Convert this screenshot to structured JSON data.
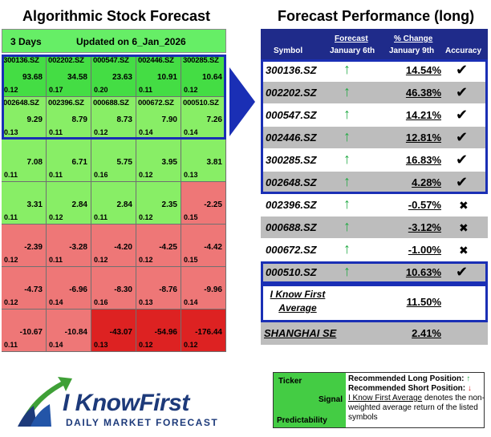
{
  "left_title": "Algorithmic Stock Forecast",
  "right_title": "Forecast Performance (long)",
  "header": {
    "days": "3 Days",
    "updated": "Updated on 6_Jan_2026"
  },
  "colors": {
    "bright_green": "#44dd44",
    "light_green": "#88ee66",
    "light_red": "#ee7777",
    "bright_red": "#dd2222",
    "table_dark": "#1f2b8a",
    "selection_blue": "#1a2fb5",
    "row_grey": "#bdbdbd"
  },
  "grid": [
    {
      "symbol": "300136.SZ",
      "signal": "93.68",
      "pred": "0.12",
      "tone": "bright_green"
    },
    {
      "symbol": "002202.SZ",
      "signal": "34.58",
      "pred": "0.17",
      "tone": "bright_green"
    },
    {
      "symbol": "000547.SZ",
      "signal": "23.63",
      "pred": "0.20",
      "tone": "bright_green"
    },
    {
      "symbol": "002446.SZ",
      "signal": "10.91",
      "pred": "0.11",
      "tone": "bright_green"
    },
    {
      "symbol": "300285.SZ",
      "signal": "10.64",
      "pred": "0.12",
      "tone": "bright_green"
    },
    {
      "symbol": "002648.SZ",
      "signal": "9.29",
      "pred": "0.13",
      "tone": "light_green"
    },
    {
      "symbol": "002396.SZ",
      "signal": "8.79",
      "pred": "0.11",
      "tone": "light_green"
    },
    {
      "symbol": "000688.SZ",
      "signal": "8.73",
      "pred": "0.12",
      "tone": "light_green"
    },
    {
      "symbol": "000672.SZ",
      "signal": "7.90",
      "pred": "0.14",
      "tone": "light_green"
    },
    {
      "symbol": "000510.SZ",
      "signal": "7.26",
      "pred": "0.14",
      "tone": "light_green"
    },
    {
      "symbol": "",
      "signal": "7.08",
      "pred": "0.11",
      "tone": "light_green"
    },
    {
      "symbol": "",
      "signal": "6.71",
      "pred": "0.11",
      "tone": "light_green"
    },
    {
      "symbol": "",
      "signal": "5.75",
      "pred": "0.16",
      "tone": "light_green"
    },
    {
      "symbol": "",
      "signal": "3.95",
      "pred": "0.12",
      "tone": "light_green"
    },
    {
      "symbol": "",
      "signal": "3.81",
      "pred": "0.13",
      "tone": "light_green"
    },
    {
      "symbol": "",
      "signal": "3.31",
      "pred": "0.11",
      "tone": "light_green"
    },
    {
      "symbol": "",
      "signal": "2.84",
      "pred": "0.12",
      "tone": "light_green"
    },
    {
      "symbol": "",
      "signal": "2.84",
      "pred": "0.11",
      "tone": "light_green"
    },
    {
      "symbol": "",
      "signal": "2.35",
      "pred": "0.12",
      "tone": "light_green"
    },
    {
      "symbol": "",
      "signal": "-2.25",
      "pred": "0.15",
      "tone": "light_red"
    },
    {
      "symbol": "",
      "signal": "-2.39",
      "pred": "0.12",
      "tone": "light_red"
    },
    {
      "symbol": "",
      "signal": "-3.28",
      "pred": "0.11",
      "tone": "light_red"
    },
    {
      "symbol": "",
      "signal": "-4.20",
      "pred": "0.12",
      "tone": "light_red"
    },
    {
      "symbol": "",
      "signal": "-4.25",
      "pred": "0.12",
      "tone": "light_red"
    },
    {
      "symbol": "",
      "signal": "-4.42",
      "pred": "0.15",
      "tone": "light_red"
    },
    {
      "symbol": "",
      "signal": "-4.73",
      "pred": "0.12",
      "tone": "light_red"
    },
    {
      "symbol": "",
      "signal": "-6.96",
      "pred": "0.14",
      "tone": "light_red"
    },
    {
      "symbol": "",
      "signal": "-8.30",
      "pred": "0.16",
      "tone": "light_red"
    },
    {
      "symbol": "",
      "signal": "-8.76",
      "pred": "0.13",
      "tone": "light_red"
    },
    {
      "symbol": "",
      "signal": "-9.96",
      "pred": "0.14",
      "tone": "light_red"
    },
    {
      "symbol": "",
      "signal": "-10.67",
      "pred": "0.11",
      "tone": "light_red"
    },
    {
      "symbol": "",
      "signal": "-10.84",
      "pred": "0.14",
      "tone": "light_red"
    },
    {
      "symbol": "",
      "signal": "-43.07",
      "pred": "0.13",
      "tone": "bright_red"
    },
    {
      "symbol": "",
      "signal": "-54.96",
      "pred": "0.12",
      "tone": "bright_red"
    },
    {
      "symbol": "",
      "signal": "-176.44",
      "pred": "0.12",
      "tone": "bright_red"
    }
  ],
  "perf_header": {
    "symbol": "Symbol",
    "forecast": "Forecast",
    "forecast_date": "January 6th",
    "change": "% Change",
    "change_date": "January 9th",
    "accuracy": "Accuracy"
  },
  "perf_rows": [
    {
      "symbol": "300136.SZ",
      "arrow": "↑",
      "change": "14.54%",
      "mark": "✔",
      "grey": false
    },
    {
      "symbol": "002202.SZ",
      "arrow": "↑",
      "change": "46.38%",
      "mark": "✔",
      "grey": true
    },
    {
      "symbol": "000547.SZ",
      "arrow": "↑",
      "change": "14.21%",
      "mark": "✔",
      "grey": false
    },
    {
      "symbol": "002446.SZ",
      "arrow": "↑",
      "change": "12.81%",
      "mark": "✔",
      "grey": true
    },
    {
      "symbol": "300285.SZ",
      "arrow": "↑",
      "change": "16.83%",
      "mark": "✔",
      "grey": false
    },
    {
      "symbol": "002648.SZ",
      "arrow": "↑",
      "change": "4.28%",
      "mark": "✔",
      "grey": true
    },
    {
      "symbol": "002396.SZ",
      "arrow": "↑",
      "change": "-0.57%",
      "mark": "✖",
      "grey": false
    },
    {
      "symbol": "000688.SZ",
      "arrow": "↑",
      "change": "-3.12%",
      "mark": "✖",
      "grey": true
    },
    {
      "symbol": "000672.SZ",
      "arrow": "↑",
      "change": "-1.00%",
      "mark": "✖",
      "grey": false
    },
    {
      "symbol": "000510.SZ",
      "arrow": "↑",
      "change": "10.63%",
      "mark": "✔",
      "grey": true
    }
  ],
  "average": {
    "label_line1": "I Know First",
    "label_line2": "Average",
    "value": "11.50%"
  },
  "shanghai": {
    "label": "SHANGHAI SE",
    "value": "2.41%"
  },
  "legend": {
    "ticker": "Ticker",
    "signal": "Signal",
    "predictability": "Predictability",
    "long_label": "Recommended Long Position:",
    "long_arrow": "↑",
    "short_label": "Recommended Short Position:",
    "short_arrow": "↓",
    "note_link": "I Know First Average",
    "note_rest": " denotes the non-weighted average return of the listed symbols"
  },
  "logo": {
    "name": "I KnowFirst",
    "tagline": "DAILY MARKET FORECAST"
  }
}
